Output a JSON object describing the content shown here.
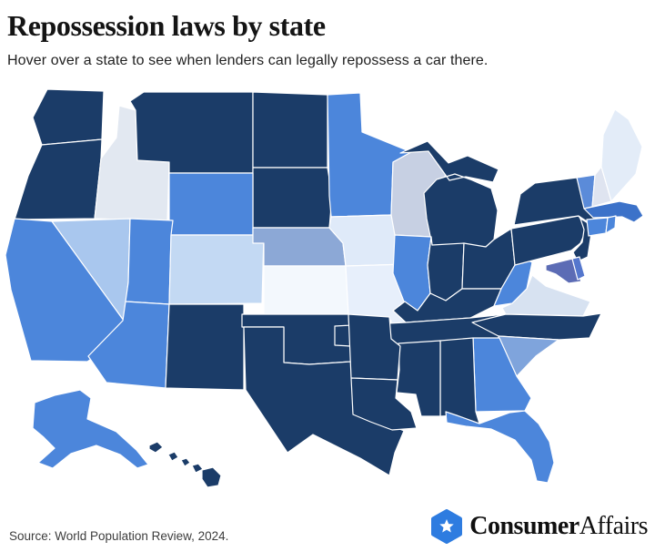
{
  "header": {
    "title": "Repossession laws by state",
    "subtitle": "Hover over a state to see when lenders can legally repossess a car there."
  },
  "map": {
    "palette": {
      "navy": "#1B3C68",
      "blue": "#4C86DB",
      "blue_deep": "#3C72C9",
      "blue_soft": "#5B8BD9",
      "violet": "#5C6CB5",
      "violet_blue": "#5577CD",
      "slate": "#8CA8D6",
      "slate_soft": "#7FA4DC",
      "sky": "#A9C7EE",
      "pale_sky": "#C3D9F3",
      "lavender_gray": "#C7D0E3",
      "ice": "#DFEAF9",
      "pale_blue_gray": "#D7E2F1",
      "mist": "#E2E8F1",
      "mist_gray": "#DFE4F0",
      "snow": "#E3ECF8",
      "near_white": "#E7EFFB",
      "white_blue": "#F3F8FD"
    },
    "border_color": "#FFFFFF",
    "states": [
      {
        "abbr": "WA",
        "name": "Washington",
        "shade": "navy"
      },
      {
        "abbr": "OR",
        "name": "Oregon",
        "shade": "navy"
      },
      {
        "abbr": "ID",
        "name": "Idaho",
        "shade": "mist"
      },
      {
        "abbr": "MT",
        "name": "Montana",
        "shade": "navy"
      },
      {
        "abbr": "ND",
        "name": "North Dakota",
        "shade": "navy"
      },
      {
        "abbr": "SD",
        "name": "South Dakota",
        "shade": "navy"
      },
      {
        "abbr": "WY",
        "name": "Wyoming",
        "shade": "blue"
      },
      {
        "abbr": "NV",
        "name": "Nevada",
        "shade": "sky"
      },
      {
        "abbr": "UT",
        "name": "Utah",
        "shade": "blue"
      },
      {
        "abbr": "CA",
        "name": "California",
        "shade": "blue"
      },
      {
        "abbr": "AZ",
        "name": "Arizona",
        "shade": "blue"
      },
      {
        "abbr": "CO",
        "name": "Colorado",
        "shade": "pale_sky"
      },
      {
        "abbr": "NM",
        "name": "New Mexico",
        "shade": "navy"
      },
      {
        "abbr": "NE",
        "name": "Nebraska",
        "shade": "slate"
      },
      {
        "abbr": "KS",
        "name": "Kansas",
        "shade": "white_blue"
      },
      {
        "abbr": "OK",
        "name": "Oklahoma",
        "shade": "navy"
      },
      {
        "abbr": "TX",
        "name": "Texas",
        "shade": "navy"
      },
      {
        "abbr": "MN",
        "name": "Minnesota",
        "shade": "blue"
      },
      {
        "abbr": "IA",
        "name": "Iowa",
        "shade": "ice"
      },
      {
        "abbr": "MO",
        "name": "Missouri",
        "shade": "near_white"
      },
      {
        "abbr": "WI",
        "name": "Wisconsin",
        "shade": "lavender_gray"
      },
      {
        "abbr": "MI",
        "name": "Michigan",
        "shade": "navy"
      },
      {
        "abbr": "IL",
        "name": "Illinois",
        "shade": "blue"
      },
      {
        "abbr": "IN",
        "name": "Indiana",
        "shade": "navy"
      },
      {
        "abbr": "OH",
        "name": "Ohio",
        "shade": "navy"
      },
      {
        "abbr": "KY",
        "name": "Kentucky",
        "shade": "navy"
      },
      {
        "abbr": "TN",
        "name": "Tennessee",
        "shade": "navy"
      },
      {
        "abbr": "WV",
        "name": "West Virginia",
        "shade": "blue"
      },
      {
        "abbr": "VA",
        "name": "Virginia",
        "shade": "pale_blue_gray"
      },
      {
        "abbr": "NC",
        "name": "North Carolina",
        "shade": "navy"
      },
      {
        "abbr": "SC",
        "name": "South Carolina",
        "shade": "slate_soft"
      },
      {
        "abbr": "GA",
        "name": "Georgia",
        "shade": "blue"
      },
      {
        "abbr": "AL",
        "name": "Alabama",
        "shade": "navy"
      },
      {
        "abbr": "MS",
        "name": "Mississippi",
        "shade": "navy"
      },
      {
        "abbr": "AR",
        "name": "Arkansas",
        "shade": "navy"
      },
      {
        "abbr": "LA",
        "name": "Louisiana",
        "shade": "navy"
      },
      {
        "abbr": "FL",
        "name": "Florida",
        "shade": "blue"
      },
      {
        "abbr": "PA",
        "name": "Pennsylvania",
        "shade": "navy"
      },
      {
        "abbr": "NY",
        "name": "New York",
        "shade": "navy"
      },
      {
        "abbr": "NJ",
        "name": "New Jersey",
        "shade": "navy"
      },
      {
        "abbr": "MD",
        "name": "Maryland",
        "shade": "violet"
      },
      {
        "abbr": "DE",
        "name": "Delaware",
        "shade": "violet_blue"
      },
      {
        "abbr": "VT",
        "name": "Vermont",
        "shade": "blue_soft"
      },
      {
        "abbr": "NH",
        "name": "New Hampshire",
        "shade": "mist_gray"
      },
      {
        "abbr": "ME",
        "name": "Maine",
        "shade": "snow"
      },
      {
        "abbr": "MA",
        "name": "Massachusetts",
        "shade": "blue_deep"
      },
      {
        "abbr": "CT",
        "name": "Connecticut",
        "shade": "blue"
      },
      {
        "abbr": "RI",
        "name": "Rhode Island",
        "shade": "blue"
      },
      {
        "abbr": "AK",
        "name": "Alaska",
        "shade": "blue"
      },
      {
        "abbr": "HI",
        "name": "Hawaii",
        "shade": "navy"
      }
    ]
  },
  "footer": {
    "source": "Source: World Population Review, 2024.",
    "logo": {
      "brand_bold": "Consumer",
      "brand_regular": "Affairs",
      "icon": "star-hexagon-icon",
      "icon_color": "#2E7CE0",
      "star_color": "#FFFFFF"
    }
  }
}
